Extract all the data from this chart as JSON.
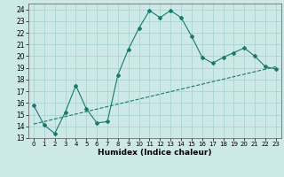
{
  "title": "",
  "xlabel": "Humidex (Indice chaleur)",
  "bg_color": "#cce9e7",
  "grid_color": "#aad4d0",
  "line_color": "#1a7a6e",
  "xlim": [
    -0.5,
    23.5
  ],
  "ylim": [
    13,
    24.5
  ],
  "yticks": [
    13,
    14,
    15,
    16,
    17,
    18,
    19,
    20,
    21,
    22,
    23,
    24
  ],
  "xticks": [
    0,
    1,
    2,
    3,
    4,
    5,
    6,
    7,
    8,
    9,
    10,
    11,
    12,
    13,
    14,
    15,
    16,
    17,
    18,
    19,
    20,
    21,
    22,
    23
  ],
  "line1_x": [
    0,
    1,
    2,
    3,
    4,
    5,
    6,
    7,
    8,
    9,
    10,
    11,
    12,
    13,
    14,
    15,
    16,
    17,
    18,
    19,
    20,
    21,
    22,
    23
  ],
  "line1_y": [
    15.8,
    14.1,
    13.4,
    15.2,
    17.5,
    15.5,
    14.3,
    14.4,
    18.4,
    20.6,
    22.4,
    23.9,
    23.3,
    23.9,
    23.3,
    21.7,
    19.9,
    19.4,
    19.9,
    20.3,
    20.7,
    20.0,
    19.1,
    18.9
  ],
  "line2_x": [
    0,
    23
  ],
  "line2_y": [
    14.2,
    19.1
  ]
}
